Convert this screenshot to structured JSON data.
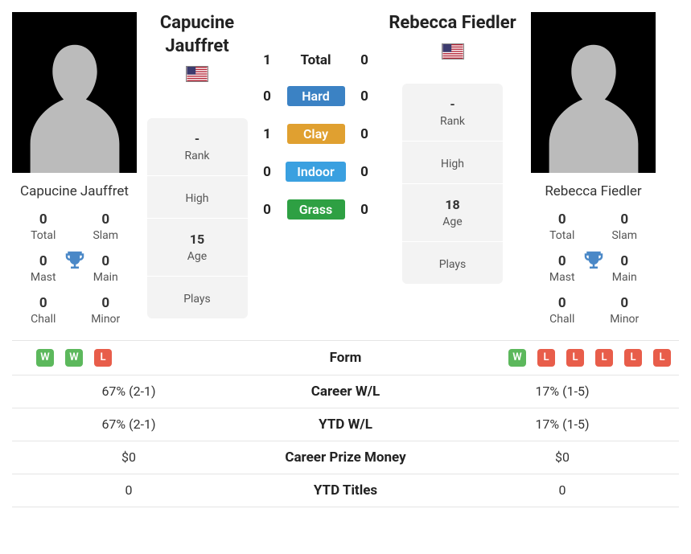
{
  "colors": {
    "hard": "#3b82c4",
    "clay": "#e0a030",
    "indoor": "#3aa0e0",
    "grass": "#2ea043",
    "win_badge": "#5cb85c",
    "loss_badge": "#e85d4a",
    "trophy": "#4a88c7"
  },
  "player1": {
    "name": "Capucine Jauffret",
    "country": "US",
    "titles": {
      "total": "0",
      "slam": "0",
      "mast": "0",
      "main": "0",
      "chall": "0",
      "minor": "0"
    },
    "info": {
      "rank": "-",
      "high": "",
      "age": "15",
      "plays": ""
    },
    "form": [
      "W",
      "W",
      "L"
    ]
  },
  "player2": {
    "name": "Rebecca Fiedler",
    "country": "US",
    "titles": {
      "total": "0",
      "slam": "0",
      "mast": "0",
      "main": "0",
      "chall": "0",
      "minor": "0"
    },
    "info": {
      "rank": "-",
      "high": "",
      "age": "18",
      "plays": ""
    },
    "form": [
      "W",
      "L",
      "L",
      "L",
      "L",
      "L"
    ]
  },
  "title_labels": {
    "total": "Total",
    "slam": "Slam",
    "mast": "Mast",
    "main": "Main",
    "chall": "Chall",
    "minor": "Minor"
  },
  "info_labels": {
    "rank": "Rank",
    "high": "High",
    "age": "Age",
    "plays": "Plays"
  },
  "h2h": {
    "total_label": "Total",
    "total_p1": "1",
    "total_p2": "0",
    "surfaces": [
      {
        "label": "Hard",
        "p1": "0",
        "p2": "0",
        "color_key": "hard"
      },
      {
        "label": "Clay",
        "p1": "1",
        "p2": "0",
        "color_key": "clay"
      },
      {
        "label": "Indoor",
        "p1": "0",
        "p2": "0",
        "color_key": "indoor"
      },
      {
        "label": "Grass",
        "p1": "0",
        "p2": "0",
        "color_key": "grass"
      }
    ]
  },
  "stats": [
    {
      "label": "Form",
      "type": "form"
    },
    {
      "label": "Career W/L",
      "p1": "67% (2-1)",
      "p2": "17% (1-5)"
    },
    {
      "label": "YTD W/L",
      "p1": "67% (2-1)",
      "p2": "17% (1-5)"
    },
    {
      "label": "Career Prize Money",
      "p1": "$0",
      "p2": "$0"
    },
    {
      "label": "YTD Titles",
      "p1": "0",
      "p2": "0"
    }
  ]
}
